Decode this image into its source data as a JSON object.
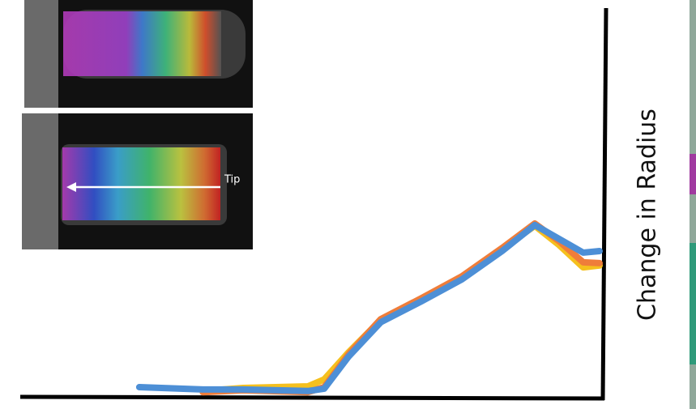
{
  "chart_data": {
    "type": "line",
    "y_label": "Change in Radius",
    "annotation": "Tip",
    "x": [
      20.4,
      31.3,
      38.2,
      49.3,
      52.1,
      56.3,
      61.8,
      68.8,
      75.7,
      82.6,
      88.2,
      92.4,
      96.5,
      99.3
    ],
    "xlim": [
      0,
      100
    ],
    "ylim": [
      0,
      100
    ],
    "series": [
      {
        "name": "Yellow",
        "color": "#f5c01e",
        "values": [
          null,
          1.5,
          2.3,
          2.7,
          4.5,
          11.5,
          19.8,
          25.2,
          30.6,
          38.1,
          44.0,
          39.0,
          33.3,
          33.8
        ]
      },
      {
        "name": "Orange",
        "color": "#ef7d3a",
        "values": [
          null,
          1.2,
          1.7,
          1.2,
          2.5,
          11.0,
          20.0,
          25.4,
          31.0,
          38.3,
          44.6,
          40.0,
          34.6,
          34.4
        ]
      },
      {
        "name": "Blue",
        "color": "#4d8fd6",
        "values": [
          2.5,
          1.9,
          1.9,
          1.5,
          2.1,
          10.4,
          19.2,
          24.6,
          30.2,
          37.5,
          44.2,
          40.6,
          37.1,
          37.5
        ]
      }
    ]
  }
}
